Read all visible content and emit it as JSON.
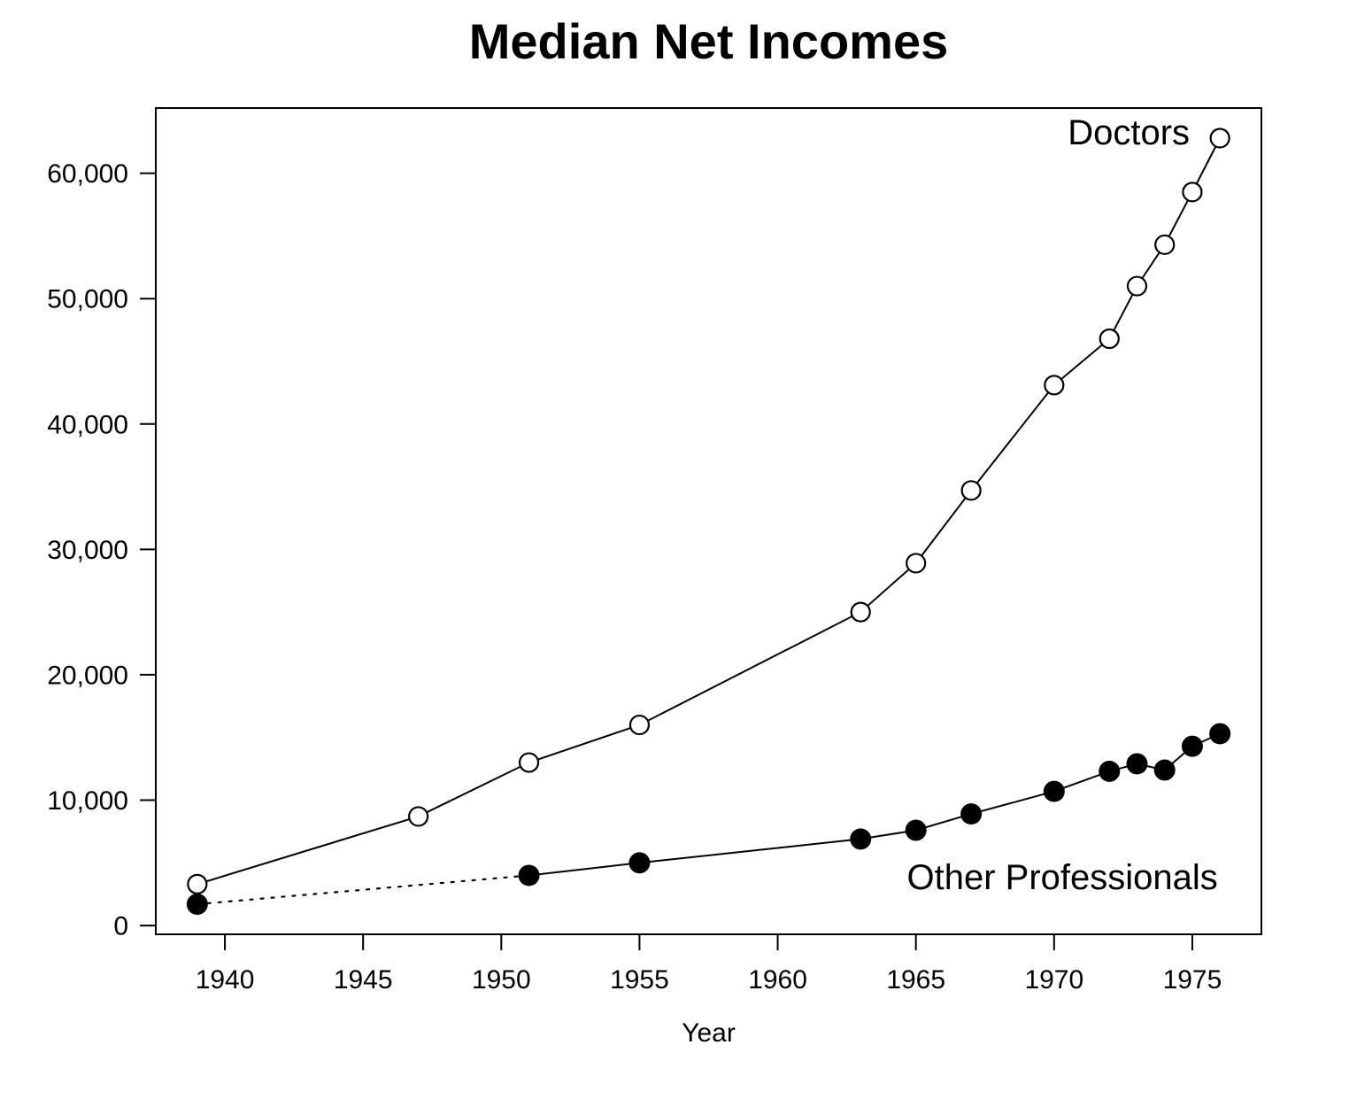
{
  "chart_data": {
    "type": "line",
    "title": "Median Net Incomes",
    "xlabel": "Year",
    "ylabel": "",
    "xlim": [
      1937.5,
      1977.5
    ],
    "ylim": [
      -700,
      65200
    ],
    "grid": false,
    "legend_position": "inline-annotations",
    "x_ticks": [
      1940,
      1945,
      1950,
      1955,
      1960,
      1965,
      1970,
      1975
    ],
    "x_tick_labels": [
      "1940",
      "1945",
      "1950",
      "1955",
      "1960",
      "1965",
      "1970",
      "1975"
    ],
    "y_ticks": [
      0,
      10000,
      20000,
      30000,
      40000,
      50000,
      60000
    ],
    "y_tick_labels": [
      "0",
      "10,000",
      "20,000",
      "30,000",
      "40,000",
      "50,000",
      "60,000"
    ],
    "line_color": "#000000",
    "background_color": "#ffffff",
    "series": [
      {
        "name": "Doctors",
        "marker": "open-circle",
        "line_style": "solid",
        "color": "#000000",
        "x": [
          1939,
          1947,
          1951,
          1955,
          1963,
          1965,
          1967,
          1970,
          1972,
          1973,
          1974,
          1975,
          1976
        ],
        "y": [
          3300,
          8700,
          13000,
          16000,
          25000,
          28900,
          34700,
          43100,
          46800,
          51000,
          54300,
          58500,
          62800
        ]
      },
      {
        "name": "Other Professionals",
        "marker": "filled-circle",
        "line_style": "solid",
        "dotted_segment": [
          1939,
          1951
        ],
        "color": "#000000",
        "x": [
          1939,
          1951,
          1955,
          1963,
          1965,
          1967,
          1970,
          1972,
          1973,
          1974,
          1975,
          1976
        ],
        "y": [
          1700,
          4000,
          5000,
          6900,
          7600,
          8900,
          10700,
          12300,
          12900,
          12400,
          14300,
          15300
        ]
      }
    ],
    "annotations": [
      {
        "text": "Doctors",
        "x": 1972.7,
        "y": 63300
      },
      {
        "text": "Other Professionals",
        "x": 1970.3,
        "y": 3900
      }
    ]
  }
}
